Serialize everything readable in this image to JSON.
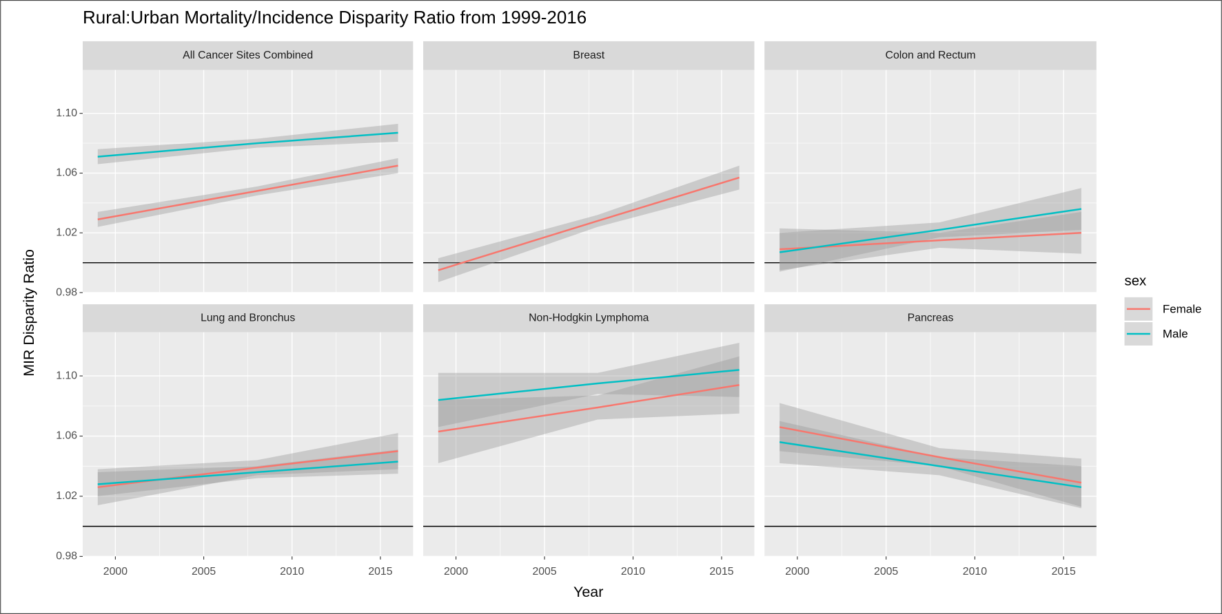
{
  "chart_data": {
    "type": "line",
    "title": "Rural:Urban Mortality/Incidence Disparity Ratio from 1999-2016",
    "xlabel": "Year",
    "ylabel": "MIR Disparity Ratio",
    "xlim": [
      1998.15,
      2016.85
    ],
    "xticks": [
      2000,
      2005,
      2010,
      2015
    ],
    "ylim": [
      0.98,
      1.129
    ],
    "yticks": [
      0.98,
      1.02,
      1.06,
      {
        "value": 1.1,
        "label": "1.10"
      }
    ],
    "hline": 1,
    "grid": true,
    "legend_title": "sex",
    "legend_position": "right",
    "panels": [
      {
        "title": "All Cancer Sites Combined",
        "x": [
          1999,
          2008,
          2016
        ],
        "series": [
          {
            "name": "Female",
            "color": "#F8766D",
            "values": [
              1.029,
              1.048,
              1.065
            ],
            "lower": [
              1.024,
              1.045,
              1.06
            ],
            "upper": [
              1.034,
              1.051,
              1.07
            ]
          },
          {
            "name": "Male",
            "color": "#00BFC4",
            "values": [
              1.071,
              1.08,
              1.087
            ],
            "lower": [
              1.066,
              1.077,
              1.081
            ],
            "upper": [
              1.076,
              1.083,
              1.093
            ]
          }
        ]
      },
      {
        "title": "Breast",
        "x": [
          1999,
          2008,
          2016
        ],
        "series": [
          {
            "name": "Female",
            "color": "#F8766D",
            "values": [
              0.995,
              1.028,
              1.057
            ],
            "lower": [
              0.987,
              1.024,
              1.049
            ],
            "upper": [
              1.003,
              1.032,
              1.065
            ]
          }
        ]
      },
      {
        "title": "Colon and Rectum",
        "x": [
          1999,
          2008,
          2016
        ],
        "series": [
          {
            "name": "Female",
            "color": "#F8766D",
            "values": [
              1.009,
              1.015,
              1.02
            ],
            "lower": [
              0.995,
              1.01,
              1.006
            ],
            "upper": [
              1.023,
              1.02,
              1.034
            ]
          },
          {
            "name": "Male",
            "color": "#00BFC4",
            "values": [
              1.007,
              1.022,
              1.036
            ],
            "lower": [
              0.994,
              1.017,
              1.022
            ],
            "upper": [
              1.02,
              1.027,
              1.05
            ]
          }
        ]
      },
      {
        "title": "Lung and Bronchus",
        "x": [
          1999,
          2008,
          2016
        ],
        "series": [
          {
            "name": "Female",
            "color": "#F8766D",
            "values": [
              1.026,
              1.039,
              1.05
            ],
            "lower": [
              1.014,
              1.034,
              1.038
            ],
            "upper": [
              1.038,
              1.044,
              1.062
            ]
          },
          {
            "name": "Male",
            "color": "#00BFC4",
            "values": [
              1.028,
              1.036,
              1.043
            ],
            "lower": [
              1.02,
              1.032,
              1.035
            ],
            "upper": [
              1.036,
              1.04,
              1.051
            ]
          }
        ]
      },
      {
        "title": "Non-Hodgkin Lymphoma",
        "x": [
          1999,
          2008,
          2016
        ],
        "series": [
          {
            "name": "Female",
            "color": "#F8766D",
            "values": [
              1.063,
              1.079,
              1.094
            ],
            "lower": [
              1.042,
              1.071,
              1.075
            ],
            "upper": [
              1.084,
              1.087,
              1.113
            ]
          },
          {
            "name": "Male",
            "color": "#00BFC4",
            "values": [
              1.084,
              1.095,
              1.104
            ],
            "lower": [
              1.066,
              1.088,
              1.086
            ],
            "upper": [
              1.102,
              1.102,
              1.122
            ]
          }
        ]
      },
      {
        "title": "Pancreas",
        "x": [
          1999,
          2008,
          2016
        ],
        "series": [
          {
            "name": "Female",
            "color": "#F8766D",
            "values": [
              1.066,
              1.046,
              1.029
            ],
            "lower": [
              1.05,
              1.04,
              1.013
            ],
            "upper": [
              1.082,
              1.052,
              1.045
            ]
          },
          {
            "name": "Male",
            "color": "#00BFC4",
            "values": [
              1.056,
              1.04,
              1.026
            ],
            "lower": [
              1.042,
              1.034,
              1.012
            ],
            "upper": [
              1.07,
              1.046,
              1.04
            ]
          }
        ]
      }
    ]
  }
}
